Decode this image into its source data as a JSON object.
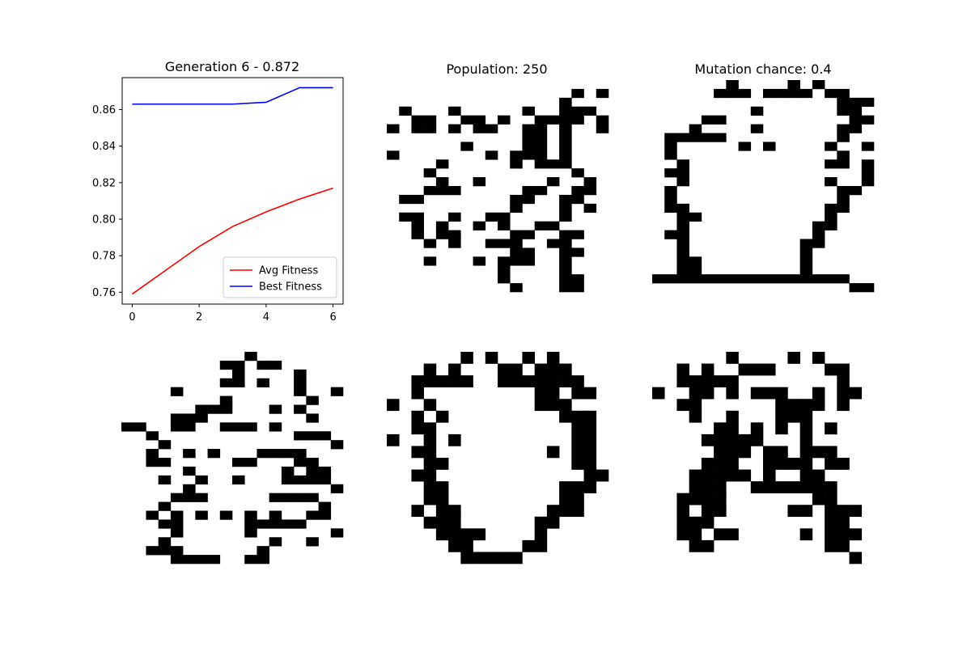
{
  "colors": {
    "avg": "#ff0000",
    "best": "#0000ff",
    "pixel": "#000000"
  },
  "panels": [
    {
      "title": "Generation 6 - 0.872"
    },
    {
      "title": "Population: 250"
    },
    {
      "title": "Mutation chance: 0.4"
    }
  ],
  "chart_data": {
    "type": "line",
    "title": "Generation 6 - 0.872",
    "x": [
      0,
      1,
      2,
      3,
      4,
      5,
      6
    ],
    "series": [
      {
        "name": "Avg Fitness",
        "color": "#ff0000",
        "values": [
          0.759,
          0.772,
          0.785,
          0.796,
          0.804,
          0.811,
          0.817
        ]
      },
      {
        "name": "Best Fitness",
        "color": "#0000ff",
        "values": [
          0.863,
          0.863,
          0.863,
          0.863,
          0.864,
          0.872,
          0.872
        ]
      }
    ],
    "xticks": [
      "0",
      "2",
      "4",
      "6"
    ],
    "yticks": [
      "0.76",
      "0.78",
      "0.80",
      "0.82",
      "0.84",
      "0.86"
    ],
    "xlim": [
      -0.3,
      6.3
    ],
    "ylim": [
      0.7535,
      0.8775
    ],
    "legend_position": "lower right",
    "xlabel": "",
    "ylabel": ""
  },
  "individuals": [
    {
      "name": "individual-1",
      "grid": [
        "..................",
        "...............#.#",
        "..............#...",
        ".#...#.....#..###.",
        "..##..##.#..####.#",
        "#.##.#.##..##.#..#",
        "...........##.#...",
        "......#....##.#...",
        "#.......#.###.#...",
        "....#.....#.###...",
        "...#...........#..",
        "....#..#.....#..#.",
        "...###.....##..##.",
        ".##.......##..##..",
        "..........#...#.#.",
        ".##..#..##....#...",
        "..#.#..#.#..##....",
        "..#.##....##..##..",
        "...#.#..###..##...",
        "..........##..##..",
        "...#...#.###..#...",
        ".........#....#...",
        ".........#....##..",
        "..........#...##.."
      ]
    },
    {
      "name": "individual-2",
      "grid": [
        "......#....#.#....",
        ".....###.####.##..",
        "...............###",
        "........#......##.",
        "....##..........##",
        "...#....#......##.",
        ".#####.........#..",
        ".#.....#.#....#..#",
        ".#.............#..",
        "..#...........##.#",
        ".##..............#",
        "..#...........#..#",
        ".#.............##.",
        ".#.............#..",
        ".##...........##..",
        "..##..........#...",
        "..#..........##...",
        ".##..........#....",
        "..#.........##....",
        "..#.........#.....",
        "..##........#.....",
        "..##........#.....",
        "################..",
        "................##"
      ]
    },
    {
      "name": "individual-3",
      "grid": [
        "..........#.......",
        "........##.##.....",
        ".........#....#...",
        "........##.#..#...",
        "....#.........#..#",
        "........#......#..",
        "......###...#.#...",
        "....###........#..",
        "##..##..###.#.....",
        "..#...........###.",
        "...#.............#",
        "..#..#.#...####...",
        "..##.....##...##..",
        ".....#.......#.##.",
        "...#..#..#...####.",
        ".....#...........#",
        "....###.....####..",
        "...#............#.",
        "..#.#.#.#.#.#..##.",
        "...##.....#####...",
        "....#.....#......#",
        "...#........#..#..",
        "..###......#......",
        "....####..##......"
      ]
    },
    {
      "name": "individual-4",
      "grid": [
        "......#.#..#.#....",
        "...#.#...##.###...",
        "..#####..#######..",
        "..#.........##.##.",
        "#..#........###...",
        "..#.#.........###.",
        "..##...........##.",
        "#..#.#.........##.",
        "..##.........#.##.",
        "...##..........##.",
        "..##............##",
        "...##.........###.",
        "...##.........##..",
        "..#.##.......###..",
        "...###......##....",
        "....####....#.....",
        ".....##....##.....",
        "......#####......."
      ]
    },
    {
      "name": "individual-5",
      "grid": [
        "......#....#.#....",
        "..#.#..###....##..",
        "..#####........#..",
        "#..##.#.###..#.##.",
        "..##......####.#..",
        "...#..#...###.....",
        ".....##.#.#.#.#...",
        "....#####...#.....",
        ".....###.##.###...",
        "....###..####.##..",
        "...#####.#..##....",
        "...###..#######...",
        "..####.......##...",
        "..#.##.....##.###.",
        "..###.........##..",
        "..##.##.....#.###.",
        "...##.........##..",
        "................#."
      ]
    },
    {
      "name": "individual-6",
      "grid": [
        "#.........#.......",
        ".#....#..#.#......",
        "..#.............##",
        "#.##...........##.",
        ".#####...........#",
        "...##.##..###..##.",
        "....###.#.##..##..",
        ".....####..#.##...",
        "......#.##.##.#...",
        "......#..###.##...",
        "......####.#.###..",
        ".......#..#.##....",
        "....####..#######.",
        "...#.....#.#......",
        "...##.....##.##...",
        "..#.##.........##.",
        "..#..##......#.##.",
        "..##.........##..."
      ]
    }
  ]
}
